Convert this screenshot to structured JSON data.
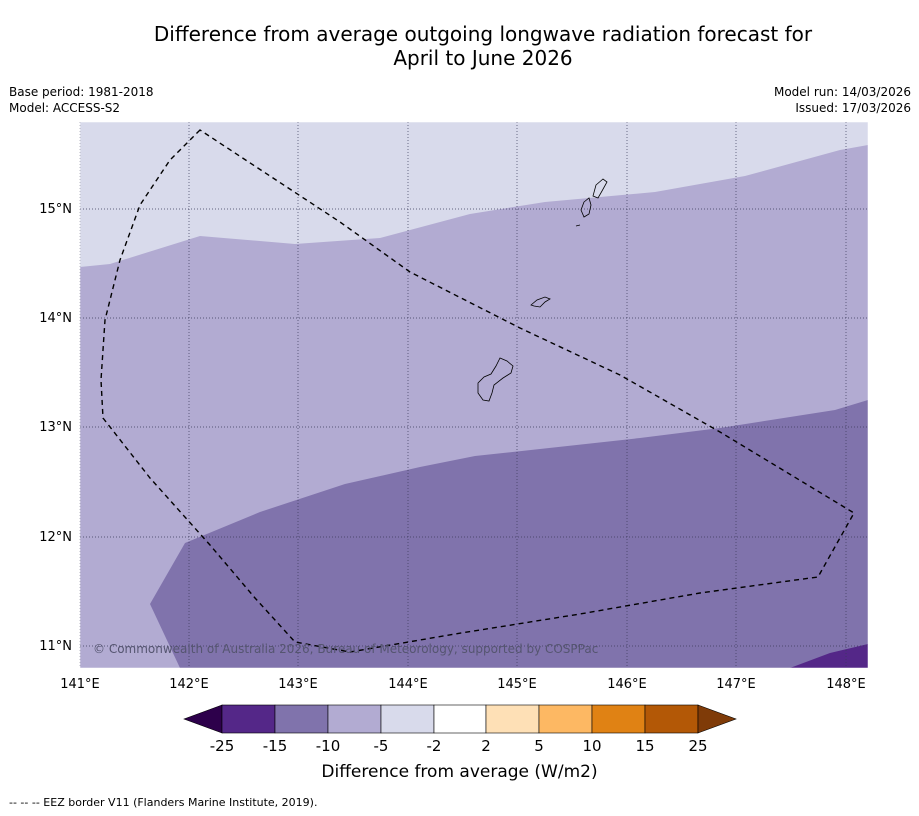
{
  "title": {
    "line1": "Difference from average outgoing longwave radiation forecast for",
    "line2": "April to June 2026"
  },
  "meta": {
    "base_period": "Base period: 1981-2018",
    "model": "Model: ACCESS-S2",
    "model_run": "Model run: 14/03/2026",
    "issued": "Issued: 17/03/2026"
  },
  "map": {
    "lon_labels": [
      "141°E",
      "142°E",
      "143°E",
      "144°E",
      "145°E",
      "146°E",
      "147°E",
      "148°E"
    ],
    "lat_labels": [
      "15°N",
      "14°N",
      "13°N",
      "12°N",
      "11°N"
    ],
    "copyright": "© Commonwealth of Australia 2026, Bureau of Meteorology, supported by COSPPac"
  },
  "colorbar": {
    "title": "Difference from average (W/m2)",
    "tick_labels": [
      "-25",
      "-15",
      "-10",
      "-5",
      "-2",
      "2",
      "5",
      "10",
      "15",
      "25"
    ],
    "colors": {
      "below_min": "#2d004b",
      "bin_m25_m15": "#542788",
      "bin_m15_m10": "#8073ac",
      "bin_m10_m5": "#b2abd2",
      "bin_m5_m2": "#d8daeb",
      "bin_m2_2": "#ffffff",
      "bin_2_5": "#fee0b6",
      "bin_5_10": "#fdb863",
      "bin_10_15": "#e08214",
      "bin_15_25": "#b35806",
      "above_max": "#7f3b08"
    }
  },
  "footnote": "--  --  -- EEZ border V11 (Flanders Marine Institute, 2019)."
}
